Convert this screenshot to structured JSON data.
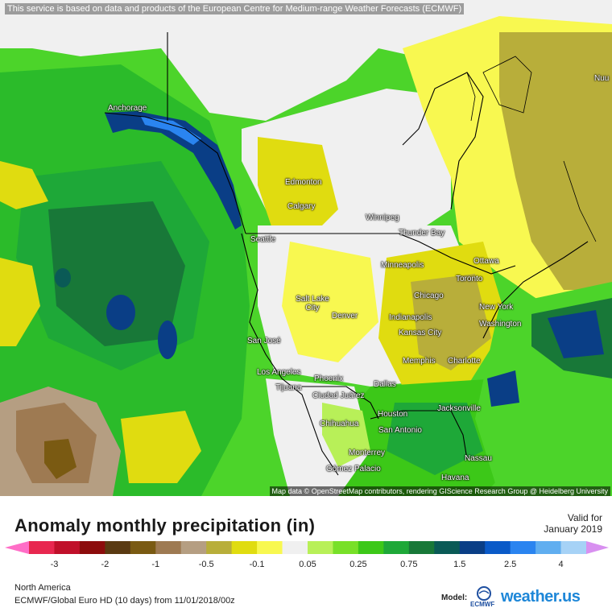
{
  "map": {
    "notice": "This service is based on data and products of the European Centre for Medium-range Weather Forecasts (ECMWF)",
    "attribution": "Map data © OpenStreetMap contributors, rendering GIScience Research Group @ Heidelberg University",
    "cities": [
      {
        "id": "anchorage",
        "name": "Anchorage"
      },
      {
        "id": "edmonton",
        "name": "Edmonton"
      },
      {
        "id": "calgary",
        "name": "Calgary"
      },
      {
        "id": "winnipeg",
        "name": "Winnipeg"
      },
      {
        "id": "thunder-bay",
        "name": "Thunder Bay"
      },
      {
        "id": "seattle",
        "name": "Seattle"
      },
      {
        "id": "ottawa",
        "name": "Ottawa"
      },
      {
        "id": "minneapolis",
        "name": "Minneapolis"
      },
      {
        "id": "toronto",
        "name": "Toronto"
      },
      {
        "id": "salt-lake-city",
        "name": "Salt Lake City"
      },
      {
        "id": "chicago",
        "name": "Chicago"
      },
      {
        "id": "new-york",
        "name": "New York"
      },
      {
        "id": "denver",
        "name": "Denver"
      },
      {
        "id": "indianapolis",
        "name": "Indianapolis"
      },
      {
        "id": "washington",
        "name": "Washington"
      },
      {
        "id": "kansas-city",
        "name": "Kansas City"
      },
      {
        "id": "san-jose",
        "name": "San José"
      },
      {
        "id": "memphis",
        "name": "Memphis"
      },
      {
        "id": "charlotte",
        "name": "Charlotte"
      },
      {
        "id": "los-angeles",
        "name": "Los Angeles"
      },
      {
        "id": "phoenix",
        "name": "Phoenix"
      },
      {
        "id": "dallas",
        "name": "Dallas"
      },
      {
        "id": "tijuana",
        "name": "Tijuana"
      },
      {
        "id": "ciudad-juarez",
        "name": "Ciudad Juárez"
      },
      {
        "id": "jacksonville",
        "name": "Jacksonville"
      },
      {
        "id": "houston",
        "name": "Houston"
      },
      {
        "id": "chihuahua",
        "name": "Chihuahua"
      },
      {
        "id": "san-antonio",
        "name": "San Antonio"
      },
      {
        "id": "monterrey",
        "name": "Monterrey"
      },
      {
        "id": "nassau",
        "name": "Nassau"
      },
      {
        "id": "gomez-palacio",
        "name": "Gómez Palacio"
      },
      {
        "id": "havana",
        "name": "Havana"
      },
      {
        "id": "nuuk",
        "name": "Nuu"
      }
    ]
  },
  "title": "Anomaly monthly precipitation (in)",
  "valid": {
    "line1": "Valid for",
    "line2": "January 2019"
  },
  "legend": {
    "colors": [
      "#e8274f",
      "#c0102a",
      "#8c0c0c",
      "#5a3a12",
      "#7a5a12",
      "#9e7a52",
      "#b59e82",
      "#b8ae3a",
      "#e0dc10",
      "#f8f850",
      "#f0f0f0",
      "#b8f058",
      "#78e028",
      "#3cc818",
      "#1ea838",
      "#187838",
      "#0a5a56",
      "#0a3e86",
      "#0a5ac8",
      "#2a84f0",
      "#60aef0",
      "#a6d2f6"
    ],
    "low_color": "#ff6ec7",
    "high_color": "#d890f0",
    "ticks": [
      "-3",
      "-2",
      "-1",
      "-0.5",
      "-0.1",
      "0.05",
      "0.25",
      "0.75",
      "1.5",
      "2.5",
      "4"
    ]
  },
  "footer": {
    "region": "North America",
    "model_run": "ECMWF/Global Euro HD (10 days) from 11/01/2018/00z",
    "model_label": "Model:",
    "ecmwf_logo_text": "ECMWF",
    "brand": "weather.us"
  }
}
